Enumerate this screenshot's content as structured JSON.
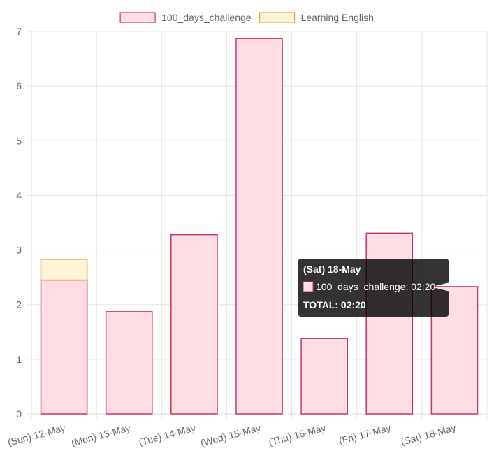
{
  "chart_data": {
    "type": "bar",
    "stacked": true,
    "categories": [
      "(Sun) 12-May",
      "(Mon) 13-May",
      "(Tue) 14-May",
      "(Wed) 15-May",
      "(Thu) 16-May",
      "(Fri) 17-May",
      "(Sat) 18-May"
    ],
    "series": [
      {
        "name": "100_days_challenge",
        "values": [
          2.45,
          1.87,
          3.28,
          6.87,
          1.38,
          3.31,
          2.33
        ],
        "fill": "#ffdde4",
        "stroke": "#c8385a"
      },
      {
        "name": "Learning English",
        "values": [
          0.38,
          0,
          0,
          0,
          0,
          0,
          0
        ],
        "fill": "#fff4d6",
        "stroke": "#d8a637"
      }
    ],
    "ylim": [
      0,
      7
    ],
    "yticks": [
      "0",
      "1",
      "2",
      "3",
      "4",
      "5",
      "6",
      "7"
    ],
    "grid": true,
    "legend_position": "top",
    "tooltip": {
      "title": "(Sat) 18-May",
      "line": "100_days_challenge: 02:20",
      "total": "TOTAL: 02:20",
      "swatch_fill": "#ffdde4",
      "swatch_stroke": "#c8385a"
    }
  }
}
